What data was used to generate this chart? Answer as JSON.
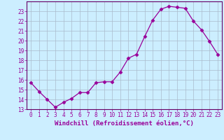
{
  "x": [
    0,
    1,
    2,
    3,
    4,
    5,
    6,
    7,
    8,
    9,
    10,
    11,
    12,
    13,
    14,
    15,
    16,
    17,
    18,
    19,
    20,
    21,
    22,
    23
  ],
  "y": [
    15.7,
    14.8,
    14.0,
    13.2,
    13.7,
    14.1,
    14.7,
    14.7,
    15.7,
    15.8,
    15.8,
    16.8,
    18.2,
    18.6,
    20.4,
    22.1,
    23.2,
    23.5,
    23.4,
    23.3,
    22.0,
    21.1,
    19.9,
    18.6
  ],
  "line_color": "#990099",
  "marker": "D",
  "marker_size": 2.5,
  "bg_color": "#cceeff",
  "grid_color": "#aabbcc",
  "xlabel": "Windchill (Refroidissement éolien,°C)",
  "xlim": [
    -0.5,
    23.5
  ],
  "ylim": [
    13,
    24
  ],
  "yticks": [
    13,
    14,
    15,
    16,
    17,
    18,
    19,
    20,
    21,
    22,
    23
  ],
  "xticks": [
    0,
    1,
    2,
    3,
    4,
    5,
    6,
    7,
    8,
    9,
    10,
    11,
    12,
    13,
    14,
    15,
    16,
    17,
    18,
    19,
    20,
    21,
    22,
    23
  ],
  "tick_label_fontsize": 5.5,
  "xlabel_fontsize": 6.5,
  "spine_color": "#660066"
}
